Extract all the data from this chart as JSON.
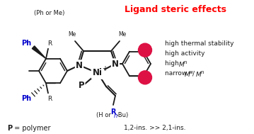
{
  "title": "Ligand steric effects",
  "title_color": "#ff0000",
  "bg_color": "white",
  "bond_color": "#1a1a1a",
  "blue_color": "#0000cc",
  "red_circle_color": "#dd1144",
  "ph_or_me": "(Ph or Me)",
  "h_or_nbu_prefix": "(H or ",
  "h_or_nbu_italic": "n",
  "h_or_nbu_suffix": "-Bu)",
  "bottom_left_bold": "P",
  "bottom_left_rest": " = polymer",
  "bottom_right": "1,2-ins. >> 2,1-ins.",
  "figw": 3.59,
  "figh": 1.89,
  "dpi": 100
}
